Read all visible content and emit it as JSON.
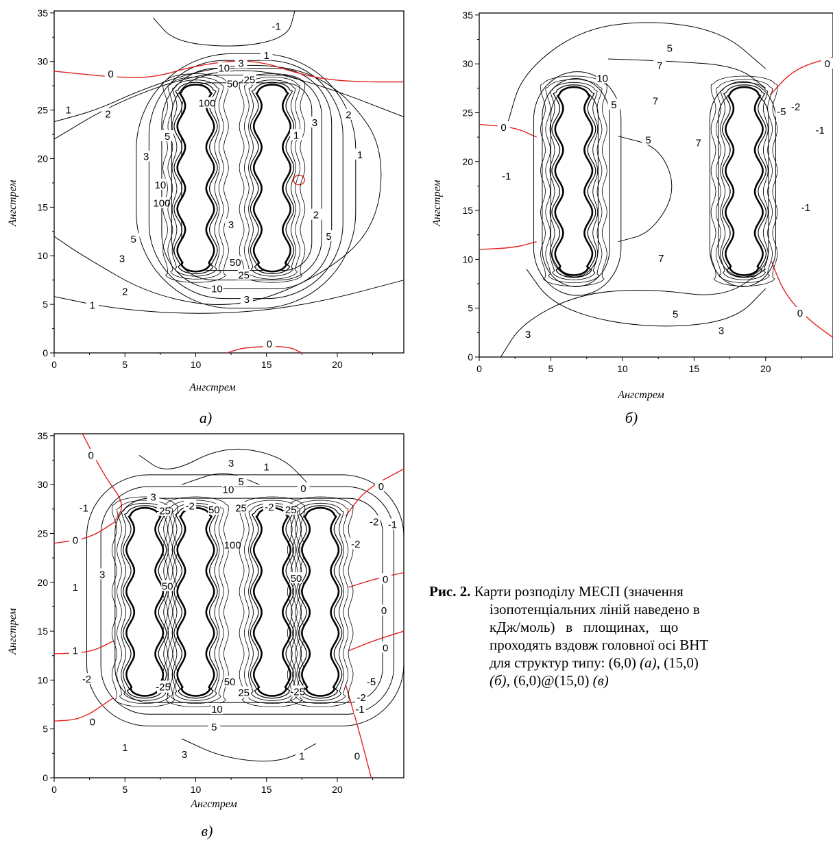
{
  "figure": {
    "caption": {
      "label": "Рис. 2.",
      "line1": "Карти розподілу МЕСП (значення",
      "line2": "ізопотенціальних ліній наведено в",
      "line3": "кДж/моль)   в   площинах,   що",
      "line4": "проходять вздовж головної осі ВНТ",
      "line5_text": "для структур типу: (6,0)",
      "tag_a": "(а)",
      "sep1": ", (15,0)",
      "tag_b": "(б)",
      "sep2": ", (6,0)@(15,0)",
      "tag_c": "(в)"
    }
  },
  "panels": [
    {
      "id": "a",
      "label": "а)",
      "xlabel": "Ангстрем",
      "ylabel": "Ангстрем",
      "xticks": [
        "0",
        "5",
        "10",
        "15",
        "20"
      ],
      "yticks": [
        "0",
        "5",
        "10",
        "15",
        "20",
        "25",
        "30",
        "35"
      ],
      "contour_labels": [
        "-1",
        "1",
        "0",
        "10",
        "3",
        "50",
        "25",
        "100",
        "1",
        "2",
        "2",
        "3",
        "1",
        "5",
        "3",
        "10",
        "100",
        "1",
        "2",
        "5",
        "3",
        "5",
        "3",
        "50",
        "25",
        "10",
        "3",
        "2",
        "1",
        "0"
      ]
    },
    {
      "id": "b",
      "label": "б)",
      "xlabel": "Ангстрем",
      "ylabel": "Ангстрем",
      "xticks": [
        "0",
        "5",
        "10",
        "15",
        "20"
      ],
      "yticks": [
        "0",
        "5",
        "10",
        "15",
        "20",
        "25",
        "30",
        "35"
      ],
      "contour_labels": [
        "5",
        "7",
        "0",
        "10",
        "5",
        "7",
        "-5",
        "-2",
        "0",
        "-1",
        "5",
        "7",
        "-1",
        "-1",
        "7",
        "3",
        "5",
        "3",
        "0"
      ]
    },
    {
      "id": "c",
      "label": "в)",
      "xlabel": "Ангстрем",
      "ylabel": "Ангстрем",
      "xticks": [
        "0",
        "5",
        "10",
        "15",
        "20"
      ],
      "yticks": [
        "0",
        "5",
        "10",
        "15",
        "20",
        "25",
        "30",
        "35"
      ],
      "contour_labels": [
        "3",
        "1",
        "0",
        "5",
        "0",
        "0",
        "10",
        "3",
        "-1",
        "50",
        "25",
        "-2",
        "-25",
        "-25",
        "-2",
        "-2",
        "-1",
        "0",
        "100",
        "-2",
        "3",
        "50",
        "50",
        "0",
        "1",
        "0",
        "1",
        "0",
        "-2",
        "25",
        "50",
        "-5",
        "-25",
        "25",
        "-25",
        "-2",
        "0",
        "10",
        "-1",
        "5",
        "1",
        "3",
        "1",
        "0"
      ]
    }
  ],
  "colors": {
    "zero_contour": "#e0201e",
    "contour": "#000000"
  }
}
